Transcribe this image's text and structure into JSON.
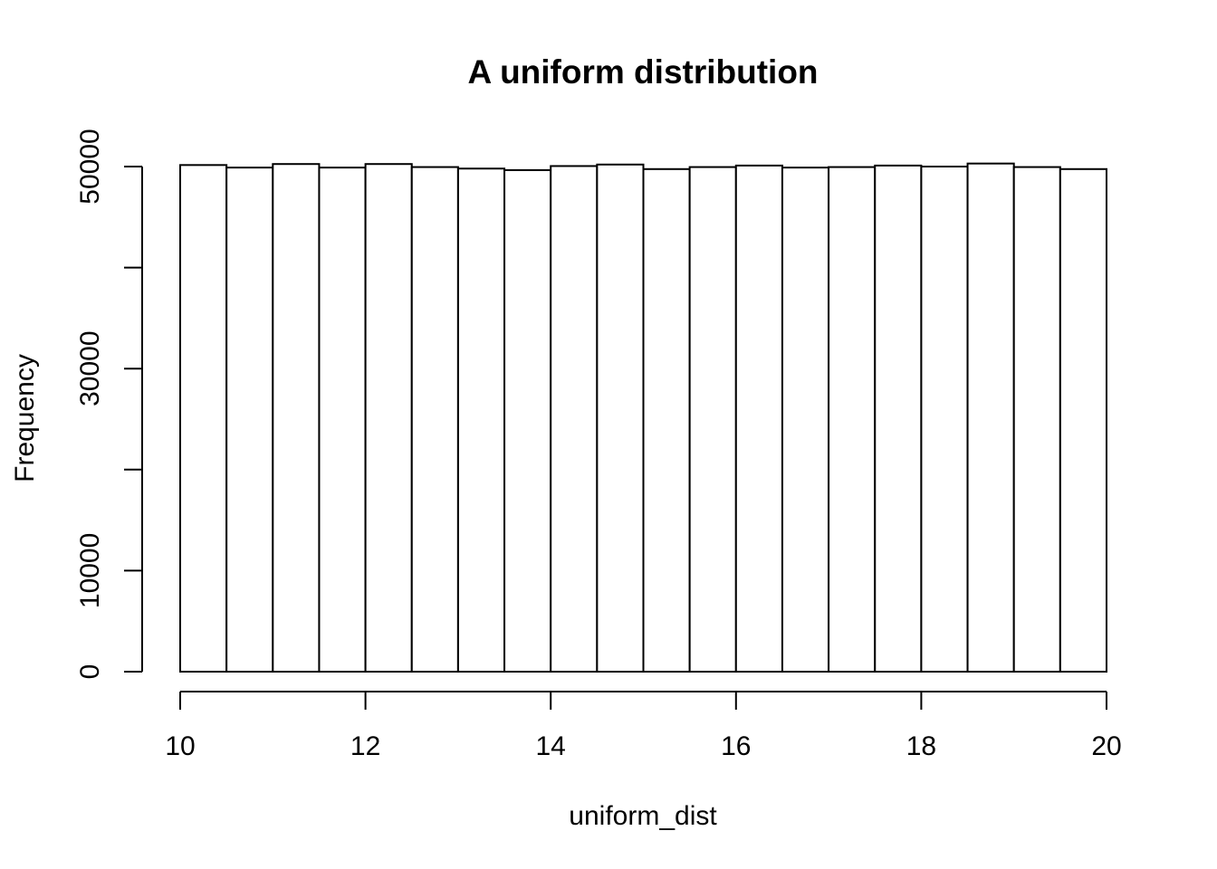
{
  "chart_data": {
    "type": "bar",
    "title": "A uniform distribution",
    "xlabel": "uniform_dist",
    "ylabel": "Frequency",
    "xlim": [
      10,
      20
    ],
    "ylim": [
      0,
      50000
    ],
    "x_ticks": [
      10,
      12,
      14,
      16,
      18,
      20
    ],
    "x_tick_labels": [
      "10",
      "12",
      "14",
      "16",
      "18",
      "20"
    ],
    "y_ticks": [
      0,
      10000,
      20000,
      30000,
      40000,
      50000
    ],
    "y_tick_labels": [
      "0",
      "10000",
      "",
      "30000",
      "",
      "50000"
    ],
    "bins": [
      {
        "x0": 10.0,
        "x1": 10.5,
        "count": 50150
      },
      {
        "x0": 10.5,
        "x1": 11.0,
        "count": 49900
      },
      {
        "x0": 11.0,
        "x1": 11.5,
        "count": 50250
      },
      {
        "x0": 11.5,
        "x1": 12.0,
        "count": 49900
      },
      {
        "x0": 12.0,
        "x1": 12.5,
        "count": 50250
      },
      {
        "x0": 12.5,
        "x1": 13.0,
        "count": 49950
      },
      {
        "x0": 13.0,
        "x1": 13.5,
        "count": 49800
      },
      {
        "x0": 13.5,
        "x1": 14.0,
        "count": 49650
      },
      {
        "x0": 14.0,
        "x1": 14.5,
        "count": 50050
      },
      {
        "x0": 14.5,
        "x1": 15.0,
        "count": 50200
      },
      {
        "x0": 15.0,
        "x1": 15.5,
        "count": 49750
      },
      {
        "x0": 15.5,
        "x1": 16.0,
        "count": 49950
      },
      {
        "x0": 16.0,
        "x1": 16.5,
        "count": 50100
      },
      {
        "x0": 16.5,
        "x1": 17.0,
        "count": 49900
      },
      {
        "x0": 17.0,
        "x1": 17.5,
        "count": 49950
      },
      {
        "x0": 17.5,
        "x1": 18.0,
        "count": 50100
      },
      {
        "x0": 18.0,
        "x1": 18.5,
        "count": 50000
      },
      {
        "x0": 18.5,
        "x1": 19.0,
        "count": 50300
      },
      {
        "x0": 19.0,
        "x1": 19.5,
        "count": 49950
      },
      {
        "x0": 19.5,
        "x1": 20.0,
        "count": 49750
      }
    ],
    "grid": false
  }
}
